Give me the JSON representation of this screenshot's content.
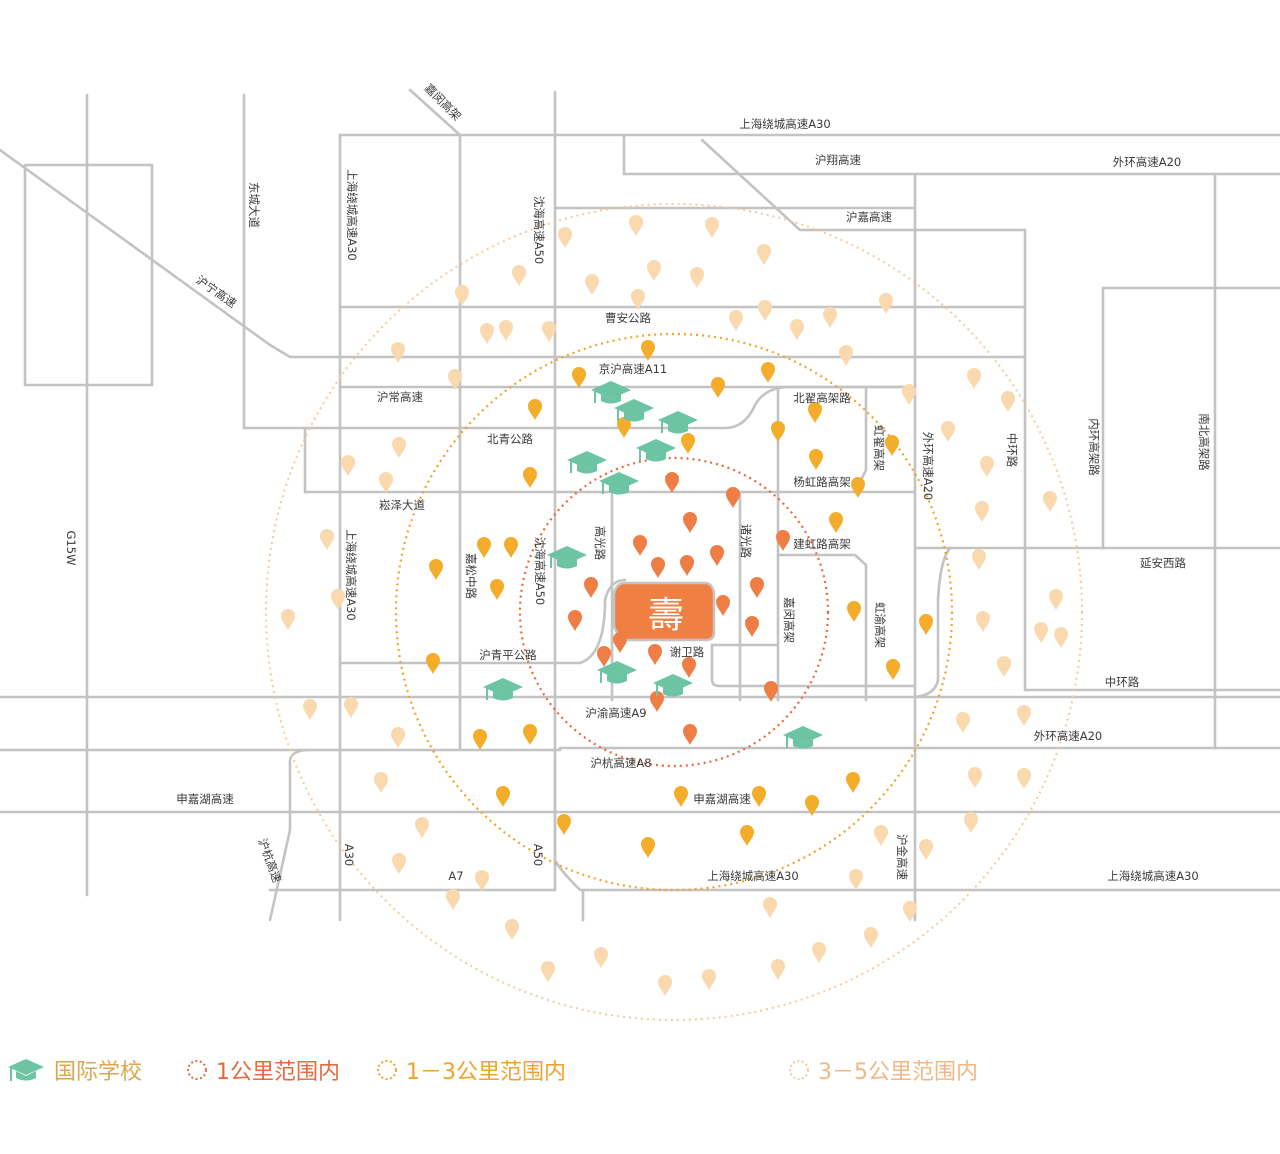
{
  "colors": {
    "road": "#c3c3c3",
    "ring_1km": "#e8683a",
    "ring_1_3km": "#f0a32a",
    "ring_3_5km": "#f4c99e",
    "pin_1km": "#ee7e45",
    "pin_1_3km": "#f3ad2b",
    "pin_3_5km": "#fad9ae",
    "school": "#6cc4a4",
    "center": "#f07f43",
    "legend_text_school": "#d8a74f",
    "legend_text_1km": "#e8683a",
    "legend_text_1_3km": "#f0a32a",
    "legend_text_3_5km": "#f0b884"
  },
  "roads": {
    "a30_top": "上海绕城高速A30",
    "huning": "沪宁高速",
    "dongcheng": "东城大道",
    "jiaminjia": "嘉闵高架",
    "huxiang": "沪翔高速",
    "a20_top_right": "外环高速A20",
    "hujia": "沪嘉高速",
    "a30_left_vert": "上海绕城高速A30",
    "a50_top": "沈海高速A50",
    "caoan": "曹安公路",
    "jinghu": "京沪高速A11",
    "huchang": "沪常高速",
    "beiqu": "北翟高架路",
    "beiqing": "北青公路",
    "hongqu": "虹翟高架",
    "a20_vert": "外环高速A20",
    "zhonghuan_vert": "中环路",
    "neihuan": "内环高架路",
    "nanbei": "南北高架路",
    "yanghong": "杨虹路高架",
    "songze": "崧泽大道",
    "jianhong": "建虹路高架",
    "gaoguang": "高光路",
    "zhuguang": "诸光路",
    "jiasong": "嘉松中路",
    "a50_mid": "沈海高速A50",
    "a30_mid": "上海绕城高速A30",
    "g15w": "G15W",
    "yanan": "延安西路",
    "hongyu": "虹渝高架",
    "jiagang": "嘉闵高架",
    "huqingping": "沪青平公路",
    "xiewei": "谢卫路",
    "zhonghuan_h": "中环路",
    "a9": "沪渝高速A9",
    "a20_bottom": "外环高速A20",
    "a8": "沪杭高速A8",
    "shenjiahu_left": "申嘉湖高速",
    "shenjiahu_mid": "申嘉湖高速",
    "hujin": "沪金高速",
    "hukun": "沪杭高速",
    "a30_bottom_left": "A30",
    "a50_bottom": "A50",
    "a7": "A7",
    "a30_bottom_mid": "上海绕城高速A30",
    "a30_bottom_right": "上海绕城高速A30"
  },
  "center_logo_glyph": "壽",
  "legend": {
    "school": "国际学校",
    "ring_1km": "1公里范围内",
    "ring_1_3km": "1－3公里范围内",
    "ring_3_5km": "3－5公里范围内"
  }
}
